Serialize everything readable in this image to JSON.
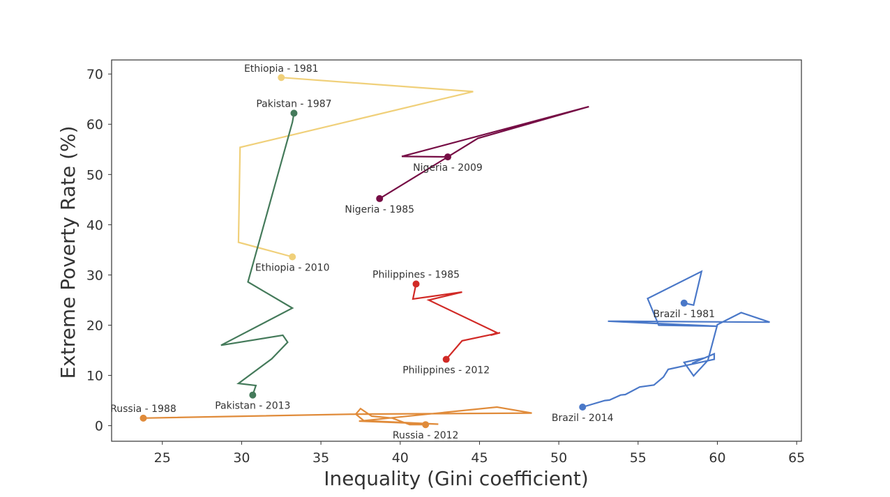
{
  "chart_data": {
    "type": "line",
    "title": "",
    "xlabel": "Inequality (Gini coefficient)",
    "ylabel": "Extreme Poverty Rate (%)",
    "xlim": [
      21.8,
      65.3
    ],
    "ylim": [
      -3.1,
      72.8
    ],
    "xticks": [
      25,
      30,
      35,
      40,
      45,
      50,
      55,
      60,
      65
    ],
    "yticks": [
      0,
      10,
      20,
      30,
      40,
      50,
      60,
      70
    ],
    "grid": false,
    "legend": "none",
    "series": [
      {
        "color": "#f0d07a",
        "points": [
          [
            32.5,
            69.3
          ],
          [
            44.6,
            66.5
          ],
          [
            29.9,
            55.4
          ],
          [
            29.8,
            36.5
          ],
          [
            33.2,
            33.6
          ]
        ],
        "start_label": "Ethiopia - 1981",
        "end_label": "Ethiopia - 2010"
      },
      {
        "color": "#447a5a",
        "points": [
          [
            33.3,
            62.2
          ],
          [
            33.2,
            60.4
          ],
          [
            33.0,
            58.1
          ],
          [
            30.4,
            28.6
          ],
          [
            33.2,
            23.4
          ],
          [
            28.7,
            16.0
          ],
          [
            32.6,
            18.0
          ],
          [
            32.9,
            16.6
          ],
          [
            31.9,
            13.3
          ],
          [
            29.8,
            8.4
          ],
          [
            30.9,
            8.0
          ],
          [
            30.7,
            6.1
          ]
        ],
        "start_label": "Pakistan - 1987",
        "end_label": "Pakistan - 2013"
      },
      {
        "color": "#760d45",
        "points": [
          [
            38.7,
            45.2
          ],
          [
            43.0,
            53.5
          ],
          [
            40.1,
            53.6
          ],
          [
            51.9,
            63.5
          ],
          [
            44.9,
            57.2
          ],
          [
            43.0,
            53.5
          ]
        ],
        "start_label": "Nigeria - 1985",
        "end_label": "Nigeria - 2009"
      },
      {
        "color": "#d12a26",
        "points": [
          [
            41.0,
            28.2
          ],
          [
            40.8,
            25.2
          ],
          [
            43.9,
            26.6
          ],
          [
            41.8,
            25.0
          ],
          [
            46.1,
            18.5
          ],
          [
            45.7,
            18.0
          ],
          [
            46.3,
            18.5
          ],
          [
            43.9,
            16.9
          ],
          [
            42.9,
            13.2
          ]
        ],
        "start_label": "Philippines - 1985",
        "end_label": "Philippines - 2012"
      },
      {
        "color": "#e08b3a",
        "points": [
          [
            23.8,
            1.5
          ],
          [
            37.2,
            2.3
          ],
          [
            48.3,
            2.5
          ],
          [
            46.1,
            3.7
          ],
          [
            37.4,
            0.9
          ],
          [
            42.4,
            0.3
          ],
          [
            37.7,
            1.0
          ],
          [
            37.2,
            2.3
          ],
          [
            37.5,
            3.4
          ],
          [
            38.2,
            1.9
          ],
          [
            39.5,
            1.5
          ],
          [
            40.6,
            0.2
          ],
          [
            41.6,
            0.2
          ]
        ],
        "start_label": "Russia - 1988",
        "end_label": "Russia - 2012"
      },
      {
        "color": "#4a78c8",
        "points": [
          [
            57.9,
            24.4
          ],
          [
            58.5,
            24.0
          ],
          [
            59.0,
            30.7
          ],
          [
            55.6,
            25.3
          ],
          [
            56.3,
            20.0
          ],
          [
            60.0,
            19.8
          ],
          [
            53.1,
            20.8
          ],
          [
            63.3,
            20.6
          ],
          [
            61.5,
            22.5
          ],
          [
            60.0,
            20.1
          ],
          [
            59.4,
            13.0
          ],
          [
            58.5,
            9.9
          ],
          [
            57.9,
            12.6
          ],
          [
            59.2,
            13.5
          ],
          [
            58.4,
            12.4
          ],
          [
            59.8,
            14.3
          ],
          [
            59.8,
            13.2
          ],
          [
            56.9,
            11.2
          ],
          [
            56.6,
            9.7
          ],
          [
            56.0,
            8.1
          ],
          [
            55.1,
            7.7
          ],
          [
            54.2,
            6.2
          ],
          [
            53.9,
            6.1
          ],
          [
            53.2,
            5.1
          ],
          [
            52.9,
            5.0
          ],
          [
            51.5,
            3.7
          ]
        ],
        "start_label": "Brazil - 1981",
        "end_label": "Brazil - 2014"
      }
    ]
  }
}
